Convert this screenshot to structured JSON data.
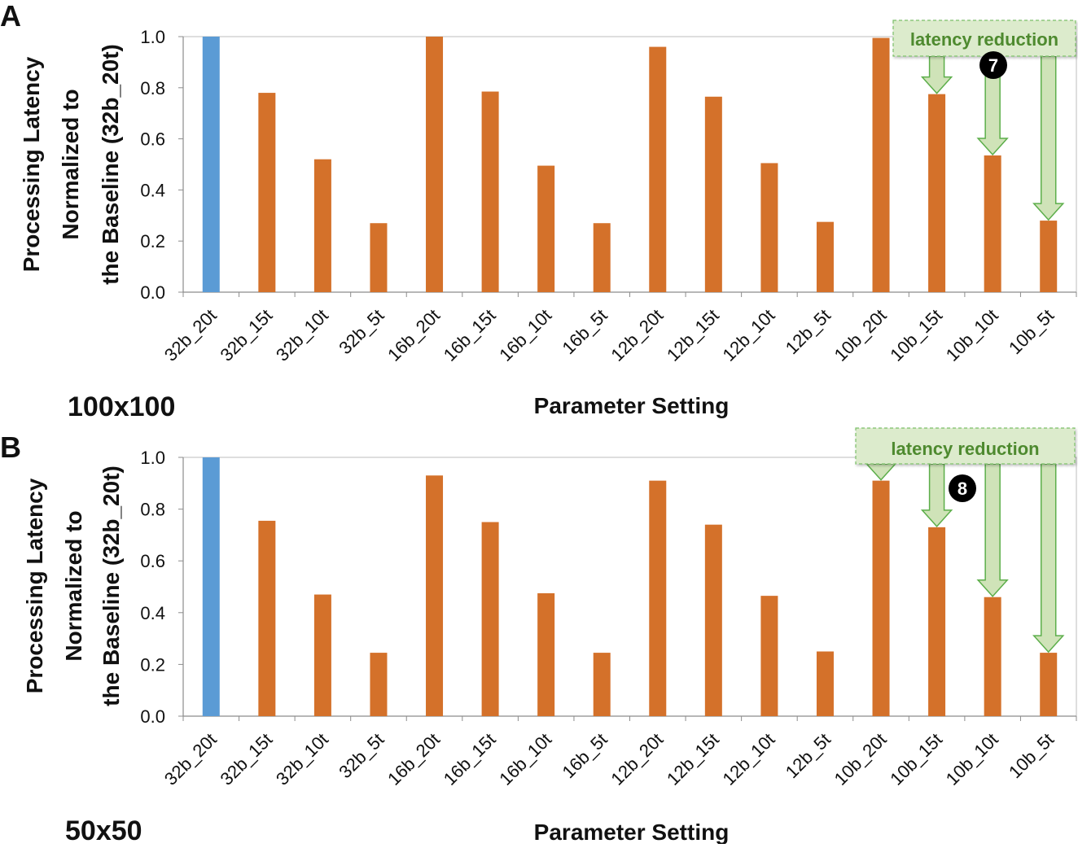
{
  "chart_data": [
    {
      "type": "bar",
      "panel_label": "A",
      "size_label": "100x100",
      "xlabel": "Parameter Setting",
      "ylabel_lines": [
        "Processing Latency",
        "Normalized to",
        "the Baseline (32b_20t)"
      ],
      "ylim": [
        0,
        1.0
      ],
      "yticks": [
        "0.0",
        "0.2",
        "0.4",
        "0.6",
        "0.8",
        "1.0"
      ],
      "categories": [
        "32b_20t",
        "32b_15t",
        "32b_10t",
        "32b_5t",
        "16b_20t",
        "16b_15t",
        "16b_10t",
        "16b_5t",
        "12b_20t",
        "12b_15t",
        "12b_10t",
        "12b_5t",
        "10b_20t",
        "10b_15t",
        "10b_10t",
        "10b_5t"
      ],
      "values": [
        1.0,
        0.78,
        0.52,
        0.27,
        1.0,
        0.785,
        0.495,
        0.27,
        0.96,
        0.765,
        0.505,
        0.275,
        0.995,
        0.775,
        0.535,
        0.28
      ],
      "annotation": "latency reduction",
      "marker": "7"
    },
    {
      "type": "bar",
      "panel_label": "B",
      "size_label": "50x50",
      "xlabel": "Parameter Setting",
      "ylabel_lines": [
        "Processing Latency",
        "Normalized to",
        "the Baseline (32b_20t)"
      ],
      "ylim": [
        0,
        1.0
      ],
      "yticks": [
        "0.0",
        "0.2",
        "0.4",
        "0.6",
        "0.8",
        "1.0"
      ],
      "categories": [
        "32b_20t",
        "32b_15t",
        "32b_10t",
        "32b_5t",
        "16b_20t",
        "16b_15t",
        "16b_10t",
        "16b_5t",
        "12b_20t",
        "12b_15t",
        "12b_10t",
        "12b_5t",
        "10b_20t",
        "10b_15t",
        "10b_10t",
        "10b_5t"
      ],
      "values": [
        1.0,
        0.755,
        0.47,
        0.245,
        0.93,
        0.75,
        0.475,
        0.245,
        0.91,
        0.74,
        0.465,
        0.25,
        0.91,
        0.73,
        0.46,
        0.245
      ],
      "annotation": "latency reduction",
      "marker": "8"
    }
  ],
  "colors": {
    "baseline": "#5b9bd5",
    "bar": "#d4712a",
    "arrow_fill": "#cfe3b8",
    "arrow_stroke": "#5cae4a",
    "annotation_text": "#4e8a2f",
    "axis": "#8c8c8c"
  }
}
